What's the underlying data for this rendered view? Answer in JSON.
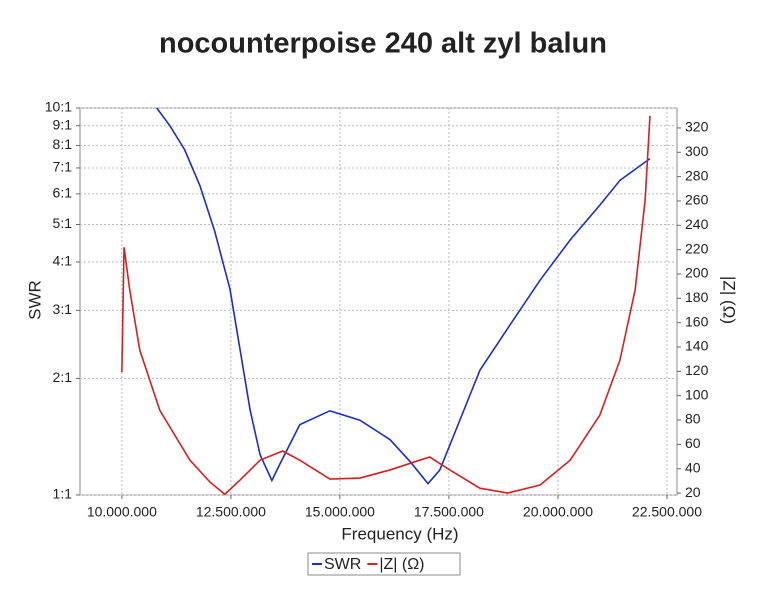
{
  "chart_data": {
    "type": "line",
    "title": "nocounterpoise 240 alt zyl balun",
    "x_label": "Frequency (Hz)",
    "y_label": "SWR",
    "y2_label": "|Z| (Ω)",
    "xlim": [
      9040000,
      22730000
    ],
    "xticks": [
      {
        "value": 10000000,
        "label": "10.000.000"
      },
      {
        "value": 12500000,
        "label": "12.500.000"
      },
      {
        "value": 15000000,
        "label": "15.000.000"
      },
      {
        "value": 17500000,
        "label": "17.500.000"
      },
      {
        "value": 20000000,
        "label": "20.000.000"
      },
      {
        "value": 22500000,
        "label": "22.500.000"
      }
    ],
    "ylim": [
      1,
      10
    ],
    "y_log": true,
    "yticks": [
      {
        "value": 1,
        "label": "1:1"
      },
      {
        "value": 2,
        "label": "2:1"
      },
      {
        "value": 3,
        "label": "3:1"
      },
      {
        "value": 4,
        "label": "4:1"
      },
      {
        "value": 5,
        "label": "5:1"
      },
      {
        "value": 6,
        "label": "6:1"
      },
      {
        "value": 7,
        "label": "7:1"
      },
      {
        "value": 8,
        "label": "8:1"
      },
      {
        "value": 9,
        "label": "9:1"
      },
      {
        "value": 10,
        "label": "10:1"
      }
    ],
    "y2lim": [
      18.4,
      336.4
    ],
    "y2ticks": [
      20,
      40,
      60,
      80,
      100,
      120,
      140,
      160,
      180,
      200,
      220,
      240,
      260,
      280,
      300,
      320
    ],
    "grid": true,
    "series": [
      {
        "name": "SWR",
        "color": "#1a2ecc",
        "x": [
          10800000,
          11100000,
          11440000,
          11790000,
          12130000,
          12480000,
          12940000,
          13170000,
          13440000,
          13620000,
          14080000,
          14770000,
          15460000,
          16150000,
          16610000,
          17020000,
          17290000,
          17750000,
          18210000,
          18900000,
          19590000,
          20280000,
          20960000,
          21420000,
          22110000
        ],
        "values": [
          10,
          9.0,
          7.8,
          6.3,
          4.8,
          3.4,
          1.66,
          1.27,
          1.09,
          1.2,
          1.52,
          1.65,
          1.56,
          1.39,
          1.22,
          1.07,
          1.16,
          1.56,
          2.1,
          2.75,
          3.59,
          4.56,
          5.61,
          6.5,
          7.4
        ]
      },
      {
        "name": "|Z| (Ω)",
        "color": "#d42020",
        "axis": "y2",
        "x": [
          10000000,
          10050000,
          10180000,
          10410000,
          10870000,
          11560000,
          12020000,
          12360000,
          12710000,
          13170000,
          13690000,
          14080000,
          14770000,
          15460000,
          16150000,
          16830000,
          17060000,
          17520000,
          18210000,
          18850000,
          19590000,
          20280000,
          20960000,
          21420000,
          21770000,
          22000000,
          22110000
        ],
        "values": [
          119.5,
          222,
          187,
          137.5,
          88,
          47,
          29,
          19,
          30.7,
          47,
          54.5,
          47,
          31.5,
          32.3,
          39,
          47,
          49.6,
          39,
          24,
          20,
          26.6,
          47,
          84,
          129,
          187,
          261,
          330
        ]
      }
    ]
  }
}
